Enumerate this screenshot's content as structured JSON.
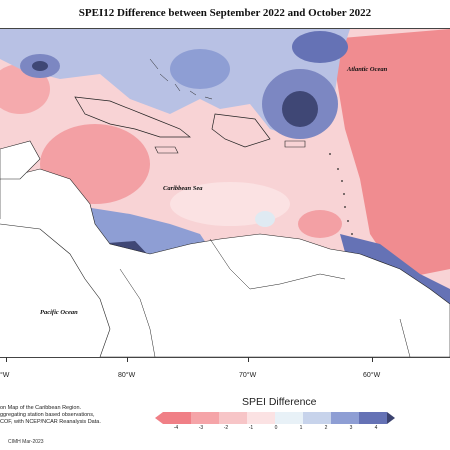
{
  "title": "SPEI12 Difference between September 2022 and October 2022",
  "labels": {
    "atlantic": "Atlantic Ocean",
    "caribbean": "Caribbean Sea",
    "pacific": "Pacific Ocean"
  },
  "longitudes": [
    "80°W",
    "70°W",
    "60°W"
  ],
  "longitude_left_partial": "°W",
  "source_lines": [
    "on Map of the Caribbean Region.",
    "ggregating station based observations,",
    "COF, with NCEP/NCAR Reanalysis Data."
  ],
  "credit": "CIMH Mar-2023",
  "legend": {
    "title": "SPEI Difference",
    "ticks": [
      "-4",
      "-3",
      "-2",
      "-1",
      "0",
      "1",
      "2",
      "3",
      "4"
    ],
    "colors": [
      "#f07f86",
      "#f5a4a8",
      "#f7c5c7",
      "#fbe2e3",
      "#e8f1f7",
      "#c7d3eb",
      "#8e9ed4",
      "#6572b5",
      "#3b426f"
    ]
  },
  "colors": {
    "land": "#ffffff",
    "strong_negative": "#f08c90",
    "negative": "#f7bcbf",
    "weak_negative": "#fbe0e2",
    "near_zero": "#e9f1f6",
    "positive": "#aeb8e0",
    "strong_positive": "#5b66a6",
    "very_strong_positive": "#3f4775"
  }
}
